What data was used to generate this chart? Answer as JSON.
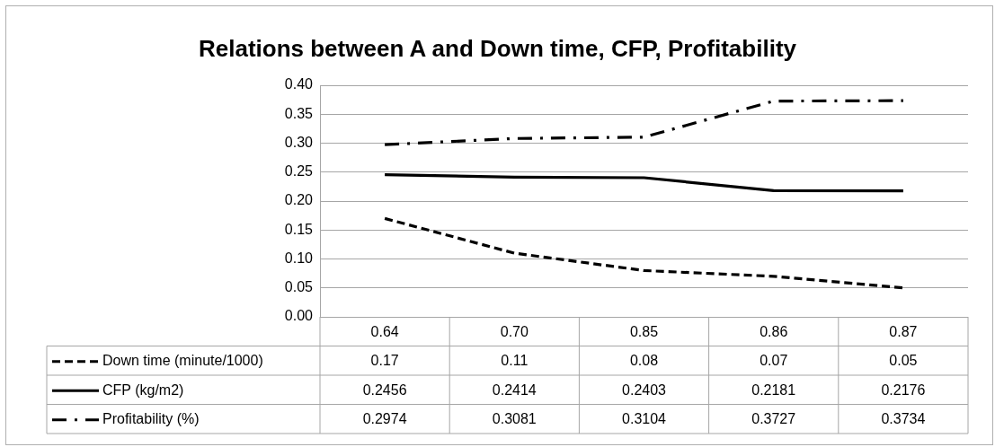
{
  "chart_data": {
    "type": "line",
    "title": "Relations between A and Down time, CFP, Profitability",
    "categories": [
      "0.64",
      "0.70",
      "0.85",
      "0.86",
      "0.87"
    ],
    "series": [
      {
        "name": "Down time (minute/1000)",
        "color": "#000000",
        "line_style": "dashed",
        "values": [
          0.17,
          0.11,
          0.08,
          0.07,
          0.05
        ]
      },
      {
        "name": "CFP (kg/m2)",
        "color": "#000000",
        "line_style": "solid",
        "values": [
          0.2456,
          0.2414,
          0.2403,
          0.2181,
          0.2176
        ]
      },
      {
        "name": "Profitability (%)",
        "color": "#000000",
        "line_style": "dashdot",
        "values": [
          0.2974,
          0.3081,
          0.3104,
          0.3727,
          0.3734
        ]
      }
    ],
    "ylim": [
      0,
      0.4
    ],
    "yticks": [
      {
        "value": 0,
        "label": "0.00"
      },
      {
        "value": 0.05,
        "label": "0.05"
      },
      {
        "value": 0.1,
        "label": "0.10"
      },
      {
        "value": 0.15,
        "label": "0.15"
      },
      {
        "value": 0.2,
        "label": "0.20"
      },
      {
        "value": 0.25,
        "label": "0.25"
      },
      {
        "value": 0.3,
        "label": "0.30"
      },
      {
        "value": 0.35,
        "label": "0.35"
      },
      {
        "value": 0.4,
        "label": "0.40"
      }
    ],
    "grid": "y",
    "legend": "bottom",
    "data_labels": true,
    "marker": "none"
  }
}
